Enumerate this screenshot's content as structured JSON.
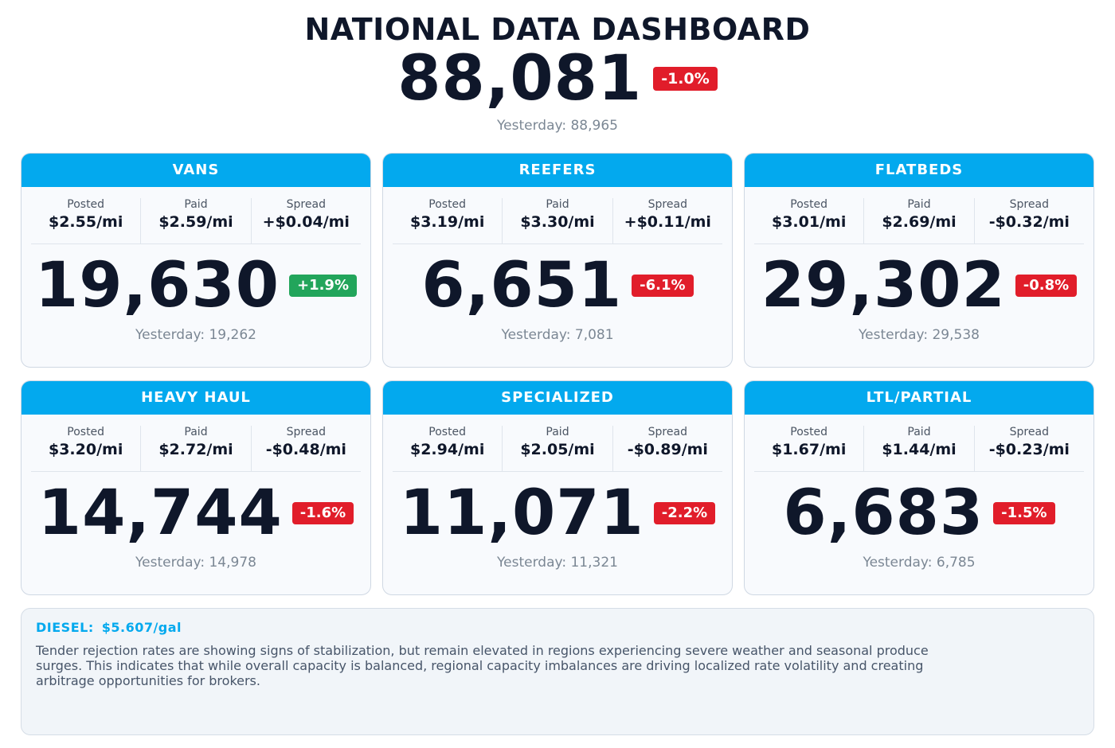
{
  "header": {
    "title": "NATIONAL DATA DASHBOARD",
    "total_value": "88,081",
    "total_change": "-1.0%",
    "total_change_direction": "down",
    "yesterday": "Yesterday: 88,965"
  },
  "labels": {
    "posted": "Posted",
    "paid": "Paid",
    "spread": "Spread"
  },
  "cards": [
    {
      "name": "VANS",
      "posted": "$2.55/mi",
      "paid": "$2.59/mi",
      "spread": "+$0.04/mi",
      "value": "19,630",
      "change": "+1.9%",
      "direction": "up",
      "yesterday": "Yesterday: 19,262"
    },
    {
      "name": "REEFERS",
      "posted": "$3.19/mi",
      "paid": "$3.30/mi",
      "spread": "+$0.11/mi",
      "value": "6,651",
      "change": "-6.1%",
      "direction": "down",
      "yesterday": "Yesterday: 7,081"
    },
    {
      "name": "FLATBEDS",
      "posted": "$3.01/mi",
      "paid": "$2.69/mi",
      "spread": "-$0.32/mi",
      "value": "29,302",
      "change": "-0.8%",
      "direction": "down",
      "yesterday": "Yesterday: 29,538"
    },
    {
      "name": "HEAVY HAUL",
      "posted": "$3.20/mi",
      "paid": "$2.72/mi",
      "spread": "-$0.48/mi",
      "value": "14,744",
      "change": "-1.6%",
      "direction": "down",
      "yesterday": "Yesterday: 14,978"
    },
    {
      "name": "SPECIALIZED",
      "posted": "$2.94/mi",
      "paid": "$2.05/mi",
      "spread": "-$0.89/mi",
      "value": "11,071",
      "change": "-2.2%",
      "direction": "down",
      "yesterday": "Yesterday: 11,321"
    },
    {
      "name": "LTL/PARTIAL",
      "posted": "$1.67/mi",
      "paid": "$1.44/mi",
      "spread": "-$0.23/mi",
      "value": "6,683",
      "change": "-1.5%",
      "direction": "down",
      "yesterday": "Yesterday: 6,785"
    }
  ],
  "summary": {
    "diesel_label": "DIESEL:",
    "diesel_value": "$5.607/gal",
    "text": "Tender rejection rates are showing signs of stabilization, but remain elevated in regions experiencing severe weather and seasonal produce surges. This indicates that while overall capacity is balanced, regional capacity imbalances are driving localized rate volatility and creating arbitrage opportunities for brokers."
  },
  "colors": {
    "accent": "#03a9ee",
    "up": "#22a55b",
    "down": "#e11d2a",
    "text": "#0f172a",
    "muted": "#7b8794"
  }
}
